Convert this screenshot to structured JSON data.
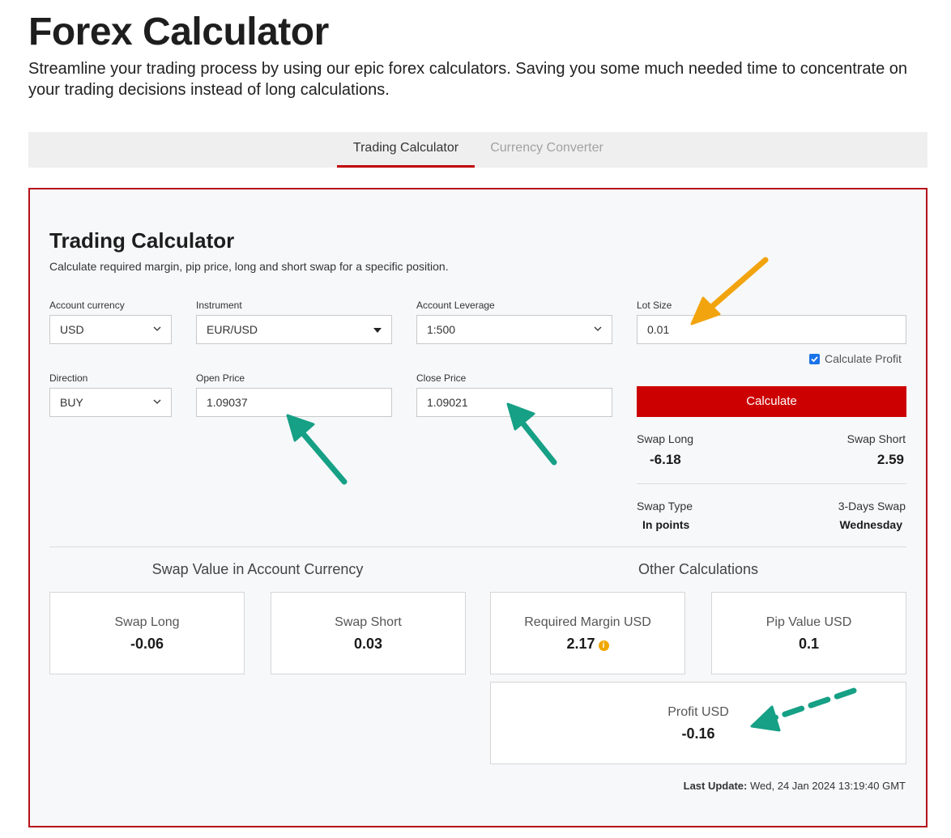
{
  "header": {
    "title": "Forex Calculator",
    "intro": "Streamline your trading process by using our epic forex calculators. Saving you some much needed time to concentrate on your trading decisions instead of long calculations."
  },
  "tabs": [
    {
      "label": "Trading Calculator",
      "active": true
    },
    {
      "label": "Currency Converter",
      "active": false
    }
  ],
  "calculator": {
    "title": "Trading Calculator",
    "description": "Calculate required margin, pip price, long and short swap for a specific position.",
    "fields": {
      "account_currency": {
        "label": "Account currency",
        "value": "USD"
      },
      "instrument": {
        "label": "Instrument",
        "value": "EUR/USD"
      },
      "account_leverage": {
        "label": "Account Leverage",
        "value": "1:500"
      },
      "lot_size": {
        "label": "Lot Size",
        "value": "0.01"
      },
      "direction": {
        "label": "Direction",
        "value": "BUY"
      },
      "open_price": {
        "label": "Open Price",
        "value": "1.09037"
      },
      "close_price": {
        "label": "Close Price",
        "value": "1.09021"
      }
    },
    "calculate_profit_label": "Calculate Profit",
    "calculate_profit_checked": true,
    "calculate_button": "Calculate",
    "summary": {
      "swap_long_label": "Swap Long",
      "swap_long_value": "-6.18",
      "swap_short_label": "Swap Short",
      "swap_short_value": "2.59",
      "swap_type_label": "Swap Type",
      "swap_type_value": "In points",
      "three_day_label": "3-Days Swap",
      "three_day_value": "Wednesday"
    },
    "swap_section": {
      "heading": "Swap Value in Account Currency",
      "swap_long_label": "Swap Long",
      "swap_long_value": "-0.06",
      "swap_short_label": "Swap Short",
      "swap_short_value": "0.03"
    },
    "other_section": {
      "heading": "Other Calculations",
      "margin_label": "Required Margin USD",
      "margin_value": "2.17",
      "info_glyph": "i",
      "pip_label": "Pip Value USD",
      "pip_value": "0.1",
      "profit_label": "Profit USD",
      "profit_value": "-0.16"
    },
    "last_update_label": "Last Update:",
    "last_update_value": "Wed, 24 Jan 2024 13:19:40 GMT"
  },
  "annotations": {
    "orange": "#f2a40f",
    "green": "#16a085"
  }
}
